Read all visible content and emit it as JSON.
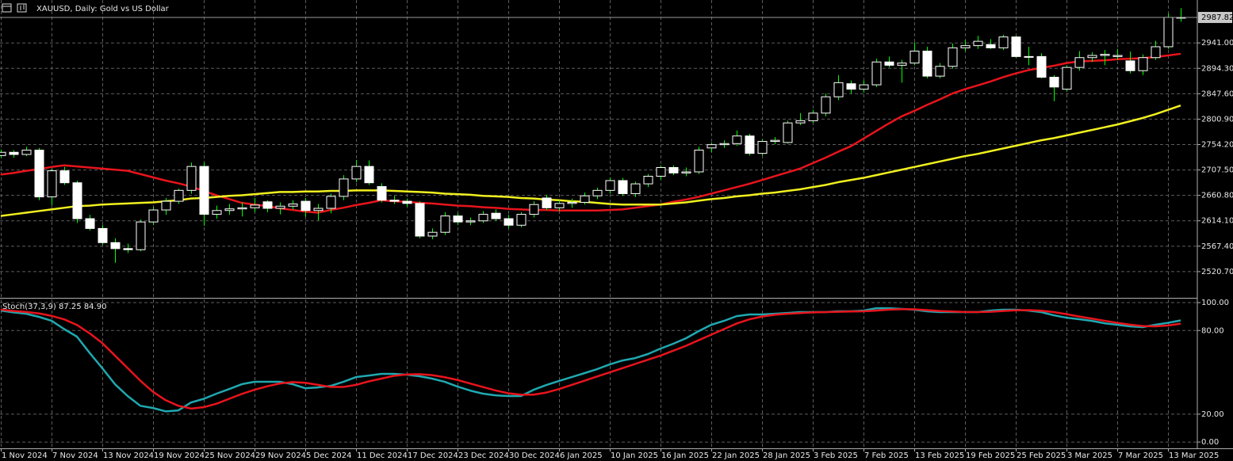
{
  "chart_data": [
    {
      "type": "candlestick",
      "title": "XAUUSD, Daily:  Gold vs US Dollar",
      "categories": [
        "1 Nov 2024",
        null,
        null,
        null,
        "7 Nov 2024",
        null,
        null,
        null,
        "13 Nov 2024",
        null,
        null,
        null,
        "19 Nov 2024",
        null,
        null,
        null,
        "25 Nov 2024",
        null,
        null,
        null,
        "29 Nov 2024",
        null,
        null,
        null,
        "5 Dec 2024",
        null,
        null,
        null,
        "11 Dec 2024",
        null,
        null,
        null,
        "17 Dec 2024",
        null,
        null,
        null,
        "23 Dec 2024",
        null,
        null,
        null,
        "30 Dec 2024",
        null,
        null,
        null,
        "6 Jan 2025",
        null,
        null,
        null,
        "10 Jan 2025",
        null,
        null,
        null,
        "16 Jan 2025",
        null,
        null,
        null,
        "22 Jan 2025",
        null,
        null,
        null,
        "28 Jan 2025",
        null,
        null,
        null,
        "3 Feb 2025",
        null,
        null,
        null,
        "7 Feb 2025",
        null,
        null,
        null,
        "13 Feb 2025",
        null,
        null,
        null,
        "19 Feb 2025",
        null,
        null,
        null,
        "25 Feb 2025",
        null,
        null,
        null,
        "3 Mar 2025",
        null,
        null,
        null,
        "7 Mar 2025",
        null,
        null,
        null,
        "13 Mar 2025",
        null
      ],
      "open": [
        2734,
        2740,
        2736,
        2744,
        2658,
        2706,
        2684,
        2618,
        2600,
        2574,
        2563,
        2561,
        2612,
        2634,
        2650,
        2670,
        2714,
        2626,
        2633,
        2636,
        2638,
        2649,
        2637,
        2641,
        2650,
        2633,
        2637,
        2659,
        2691,
        2714,
        2677,
        2652,
        2650,
        2646,
        2586,
        2593,
        2623,
        2612,
        2614,
        2628,
        2618,
        2606,
        2626,
        2656,
        2638,
        2646,
        2648,
        2660,
        2670,
        2688,
        2664,
        2682,
        2696,
        2712,
        2702,
        2704,
        2748,
        2754,
        2756,
        2770,
        2738,
        2760,
        2758,
        2794,
        2798,
        2812,
        2842,
        2866,
        2856,
        2864,
        2906,
        2900,
        2904,
        2926,
        2880,
        2898,
        2932,
        2936,
        2938,
        2932,
        2952,
        2916,
        2916,
        2878,
        2856,
        2896,
        2914,
        2918,
        2916,
        2908,
        2890,
        2914,
        2934,
        2988
      ],
      "high": [
        2745,
        2744,
        2750,
        2748,
        2710,
        2713,
        2688,
        2625,
        2606,
        2582,
        2572,
        2616,
        2640,
        2656,
        2673,
        2721,
        2721,
        2642,
        2645,
        2648,
        2656,
        2652,
        2648,
        2652,
        2656,
        2645,
        2664,
        2698,
        2726,
        2725,
        2683,
        2660,
        2655,
        2650,
        2600,
        2630,
        2628,
        2620,
        2632,
        2635,
        2625,
        2630,
        2650,
        2662,
        2652,
        2655,
        2666,
        2675,
        2694,
        2693,
        2686,
        2700,
        2716,
        2716,
        2712,
        2750,
        2758,
        2762,
        2780,
        2774,
        2764,
        2768,
        2798,
        2812,
        2818,
        2848,
        2882,
        2872,
        2872,
        2912,
        2916,
        2910,
        2942,
        2934,
        2904,
        2940,
        2946,
        2954,
        2948,
        2956,
        2954,
        2934,
        2922,
        2882,
        2900,
        2926,
        2924,
        2928,
        2930,
        2925,
        2920,
        2945,
        2995,
        3005
      ],
      "low": [
        2730,
        2730,
        2733,
        2652,
        2643,
        2680,
        2610,
        2596,
        2570,
        2537,
        2555,
        2558,
        2606,
        2625,
        2645,
        2664,
        2605,
        2618,
        2625,
        2622,
        2630,
        2630,
        2626,
        2635,
        2622,
        2615,
        2628,
        2652,
        2685,
        2680,
        2648,
        2645,
        2640,
        2582,
        2580,
        2588,
        2606,
        2606,
        2610,
        2614,
        2600,
        2602,
        2620,
        2634,
        2632,
        2638,
        2644,
        2654,
        2664,
        2660,
        2658,
        2676,
        2690,
        2698,
        2696,
        2700,
        2740,
        2748,
        2752,
        2734,
        2734,
        2755,
        2756,
        2790,
        2794,
        2806,
        2836,
        2848,
        2850,
        2860,
        2896,
        2868,
        2900,
        2876,
        2876,
        2894,
        2926,
        2930,
        2930,
        2928,
        2914,
        2900,
        2876,
        2834,
        2852,
        2890,
        2906,
        2900,
        2910,
        2885,
        2882,
        2910,
        2930,
        2980
      ],
      "close": [
        2740,
        2736,
        2744,
        2658,
        2706,
        2684,
        2618,
        2600,
        2574,
        2563,
        2561,
        2612,
        2634,
        2650,
        2670,
        2714,
        2626,
        2633,
        2636,
        2638,
        2643,
        2637,
        2641,
        2645,
        2633,
        2637,
        2659,
        2691,
        2714,
        2684,
        2652,
        2650,
        2646,
        2586,
        2593,
        2623,
        2612,
        2614,
        2626,
        2618,
        2606,
        2626,
        2644,
        2638,
        2646,
        2648,
        2660,
        2670,
        2688,
        2664,
        2682,
        2696,
        2712,
        2702,
        2704,
        2744,
        2754,
        2756,
        2770,
        2738,
        2760,
        2762,
        2794,
        2798,
        2812,
        2842,
        2868,
        2856,
        2864,
        2906,
        2900,
        2904,
        2926,
        2880,
        2898,
        2932,
        2936,
        2944,
        2932,
        2952,
        2916,
        2916,
        2878,
        2860,
        2896,
        2914,
        2918,
        2920,
        2918,
        2890,
        2914,
        2934,
        2988,
        2987.82
      ],
      "up_fill": "#000000",
      "down_fill": "#ffffff",
      "candle_outline": "#ffffff",
      "wick_color": "#00ff00",
      "series": [
        {
          "color": "#e8141c",
          "values": [
            2699,
            2702,
            2706,
            2709,
            2713,
            2716,
            2714,
            2712,
            2710,
            2708,
            2706,
            2700,
            2694,
            2688,
            2683,
            2677,
            2669,
            2661,
            2654,
            2647,
            2644,
            2641,
            2637,
            2634,
            2631,
            2629,
            2634,
            2638,
            2643,
            2647,
            2652,
            2650,
            2649,
            2647,
            2646,
            2644,
            2642,
            2641,
            2639,
            2638,
            2636,
            2635,
            2634,
            2634,
            2633,
            2633,
            2633,
            2633,
            2634,
            2635,
            2638,
            2641,
            2644,
            2649,
            2653,
            2658,
            2664,
            2670,
            2676,
            2682,
            2689,
            2696,
            2703,
            2710,
            2720,
            2730,
            2741,
            2751,
            2765,
            2779,
            2793,
            2806,
            2816,
            2827,
            2837,
            2848,
            2856,
            2863,
            2870,
            2878,
            2885,
            2891,
            2895,
            2899,
            2904,
            2907,
            2908,
            2909,
            2911,
            2912,
            2913,
            2915,
            2918,
            2921
          ]
        },
        {
          "color": "#f0f020",
          "values": [
            2623,
            2626,
            2629,
            2632,
            2635,
            2638,
            2641,
            2642,
            2644,
            2645,
            2646,
            2647,
            2648,
            2650,
            2652,
            2655,
            2656,
            2658,
            2660,
            2661,
            2663,
            2665,
            2667,
            2667,
            2668,
            2668,
            2669,
            2669,
            2670,
            2670,
            2670,
            2669,
            2668,
            2667,
            2666,
            2664,
            2663,
            2662,
            2660,
            2659,
            2658,
            2656,
            2655,
            2653,
            2652,
            2650,
            2649,
            2647,
            2645,
            2644,
            2644,
            2644,
            2644,
            2646,
            2648,
            2651,
            2654,
            2656,
            2659,
            2661,
            2664,
            2666,
            2669,
            2672,
            2676,
            2680,
            2685,
            2689,
            2693,
            2698,
            2703,
            2708,
            2713,
            2718,
            2723,
            2728,
            2733,
            2737,
            2742,
            2747,
            2752,
            2757,
            2762,
            2766,
            2771,
            2776,
            2781,
            2786,
            2791,
            2797,
            2803,
            2810,
            2818,
            2826
          ]
        }
      ],
      "ylim": [
        2472.5,
        3019.9
      ],
      "yticks": [
        {
          "value": 2520.7,
          "label": "2520.70"
        },
        {
          "value": 2567.4,
          "label": "2567.40"
        },
        {
          "value": 2614.1,
          "label": "2614.10"
        },
        {
          "value": 2660.8,
          "label": "2660.80"
        },
        {
          "value": 2707.5,
          "label": "2707.50"
        },
        {
          "value": 2754.2,
          "label": "2754.20"
        },
        {
          "value": 2800.9,
          "label": "2800.90"
        },
        {
          "value": 2847.6,
          "label": "2847.60"
        },
        {
          "value": 2894.3,
          "label": "2894.30"
        },
        {
          "value": 2941,
          "label": "2941.00"
        }
      ],
      "current_price": {
        "value": 2987.82,
        "label": "2987.82"
      },
      "grid": true
    },
    {
      "type": "line",
      "title": "Stoch(37,3,9) 87.25 84.90",
      "series": [
        {
          "color": "#20a8b0",
          "values": [
            94.3,
            93,
            92,
            89.8,
            87,
            81,
            75.6,
            64,
            53,
            41.5,
            33,
            26,
            24.4,
            22,
            22.7,
            28.4,
            31,
            34.7,
            38,
            41.5,
            43.2,
            43.2,
            43.2,
            41.5,
            38.6,
            39.2,
            40.3,
            43.2,
            46.6,
            47.7,
            48.9,
            48.9,
            48.3,
            47.2,
            45.5,
            43.2,
            39.8,
            36.9,
            34.7,
            33.5,
            33,
            33,
            37.5,
            40.9,
            43.8,
            46.6,
            49.4,
            52.3,
            55.7,
            58.5,
            60.2,
            63.1,
            67,
            70.5,
            74.4,
            79.5,
            84.1,
            86.9,
            90.3,
            91.5,
            91.5,
            92,
            92.6,
            93.2,
            93.2,
            93.2,
            93.8,
            93.8,
            94.3,
            96,
            96,
            95.5,
            94.9,
            93.8,
            93.2,
            93.2,
            93.2,
            93.2,
            94.3,
            94.9,
            94.9,
            94.3,
            93.2,
            90.9,
            89.2,
            88.1,
            86.9,
            85.2,
            84.1,
            83,
            82.4,
            84.1,
            85.5,
            87.25
          ]
        },
        {
          "color": "#e8141c",
          "values": [
            95,
            94,
            93.3,
            92.3,
            90.5,
            88,
            84,
            78,
            71,
            62,
            53,
            44,
            36,
            30,
            26,
            24,
            25,
            27.5,
            31,
            34.5,
            37.5,
            40,
            42,
            43,
            42.5,
            41,
            39.5,
            39.5,
            41,
            43.5,
            45.5,
            47.5,
            48.5,
            48.7,
            48,
            46.5,
            44.5,
            42,
            39.5,
            37,
            35,
            34,
            34,
            35.5,
            38,
            41,
            44,
            47,
            50,
            53,
            56,
            59,
            62,
            65.5,
            69,
            73,
            77,
            81,
            85,
            88,
            90,
            91.3,
            92,
            92.5,
            93,
            93.2,
            93.4,
            93.6,
            93.8,
            94.3,
            95,
            95.3,
            95.2,
            94.6,
            94,
            93.6,
            93.3,
            93.2,
            93.4,
            94,
            94.5,
            94.6,
            94.2,
            93.2,
            91.7,
            90,
            88.5,
            87,
            85.5,
            84.2,
            83.2,
            83,
            83.6,
            84.9
          ]
        }
      ],
      "ylim": [
        -4.5,
        102.3
      ],
      "yticks": [
        {
          "value": 100,
          "label": "100.00"
        },
        {
          "value": 80,
          "label": "80.00"
        },
        {
          "value": 20,
          "label": "20.00"
        },
        {
          "value": 0,
          "label": "0.00"
        }
      ],
      "grid": true
    }
  ]
}
